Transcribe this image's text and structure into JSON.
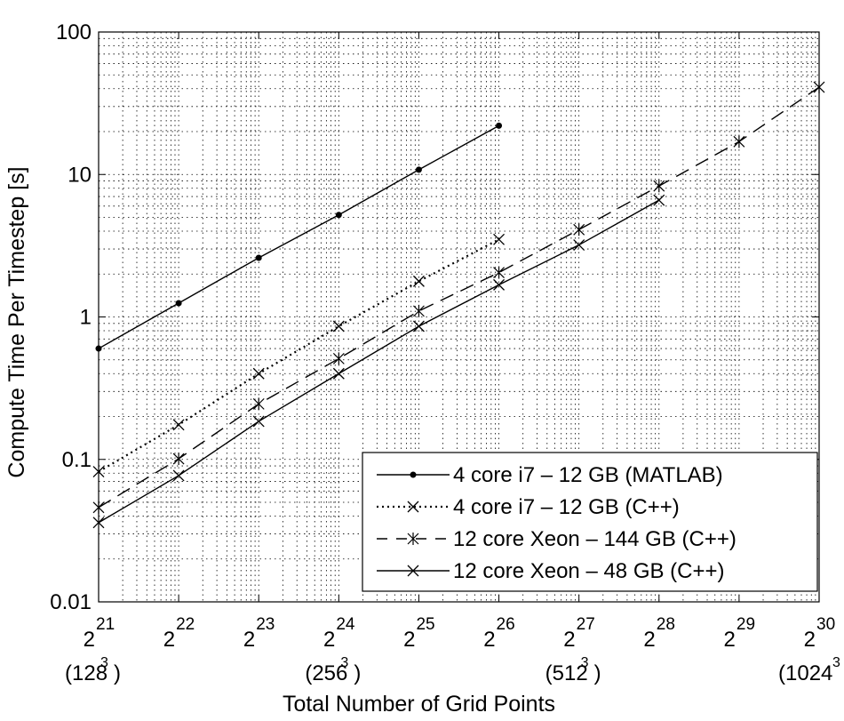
{
  "chart_data": {
    "type": "line",
    "title": "",
    "xlabel": "Total Number of Grid Points",
    "ylabel": "Compute Time Per Timestep [s]",
    "xscale": "log2",
    "yscale": "log",
    "xlim": [
      21,
      30
    ],
    "ylim": [
      0.01,
      100
    ],
    "grid": "major and minor, dotted",
    "legend_position": "bottom-right",
    "xticks": [
      {
        "base": "2",
        "exp": "21",
        "sub": "(128",
        "sub_exp": "3",
        "sub_close": ")"
      },
      {
        "base": "2",
        "exp": "22",
        "sub": "",
        "sub_exp": "",
        "sub_close": ""
      },
      {
        "base": "2",
        "exp": "23",
        "sub": "",
        "sub_exp": "",
        "sub_close": ""
      },
      {
        "base": "2",
        "exp": "24",
        "sub": "(256",
        "sub_exp": "3",
        "sub_close": ")"
      },
      {
        "base": "2",
        "exp": "25",
        "sub": "",
        "sub_exp": "",
        "sub_close": ""
      },
      {
        "base": "2",
        "exp": "26",
        "sub": "",
        "sub_exp": "",
        "sub_close": ""
      },
      {
        "base": "2",
        "exp": "27",
        "sub": "(512",
        "sub_exp": "3",
        "sub_close": ")"
      },
      {
        "base": "2",
        "exp": "28",
        "sub": "",
        "sub_exp": "",
        "sub_close": ""
      },
      {
        "base": "2",
        "exp": "29",
        "sub": "",
        "sub_exp": "",
        "sub_close": ""
      },
      {
        "base": "2",
        "exp": "30",
        "sub": "(1024",
        "sub_exp": "3",
        "sub_close": ")"
      }
    ],
    "yticks": [
      {
        "value": 0.01,
        "label": "0.01"
      },
      {
        "value": 0.1,
        "label": "0.1"
      },
      {
        "value": 1,
        "label": "1"
      },
      {
        "value": 10,
        "label": "10"
      },
      {
        "value": 100,
        "label": "100"
      }
    ],
    "series": [
      {
        "name": "4 core i7 – 12 GB (MATLAB)",
        "marker": "dot",
        "line": "solid",
        "x": [
          21,
          22,
          23,
          24,
          25,
          26
        ],
        "y": [
          0.6,
          1.25,
          2.6,
          5.2,
          10.8,
          22
        ]
      },
      {
        "name": "4 core i7 – 12 GB (C++)",
        "marker": "x",
        "line": "dotted",
        "x": [
          21,
          22,
          23,
          24,
          25,
          26
        ],
        "y": [
          0.082,
          0.175,
          0.4,
          0.86,
          1.78,
          3.5
        ]
      },
      {
        "name": "12 core Xeon – 144 GB (C++)",
        "marker": "star",
        "line": "dashed",
        "x": [
          21,
          22,
          23,
          24,
          25,
          26,
          27,
          28,
          29,
          30
        ],
        "y": [
          0.046,
          0.101,
          0.245,
          0.51,
          1.1,
          2.05,
          4.1,
          8.3,
          17,
          41
        ]
      },
      {
        "name": "12 core Xeon – 48 GB (C++)",
        "marker": "x",
        "line": "solid",
        "x": [
          21,
          22,
          23,
          24,
          25,
          26,
          27,
          28
        ],
        "y": [
          0.036,
          0.077,
          0.185,
          0.4,
          0.86,
          1.68,
          3.2,
          6.6
        ]
      }
    ]
  }
}
